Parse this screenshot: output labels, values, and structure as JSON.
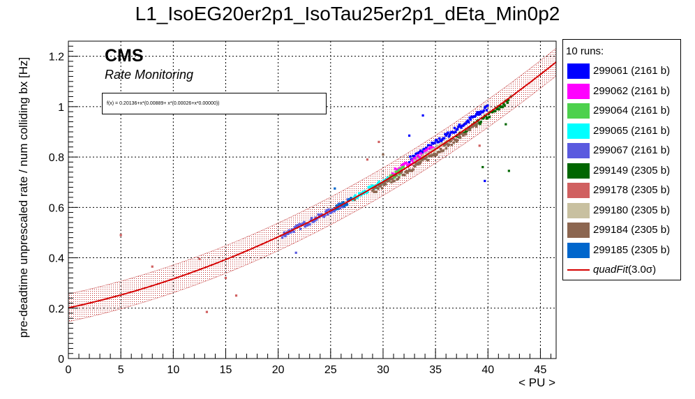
{
  "title": "L1_IsoEG20er2p1_IsoTau25er2p1_dEta_Min0p2",
  "cms_label": "CMS",
  "rate_label": "Rate Monitoring",
  "fit_formula": "f(x) = 0.20136+x*(0.00889+ x*(0.00026+x*0.00000))",
  "legend": {
    "header": "10 runs:",
    "fit_name": "quadFit",
    "fit_sigma": "(3.0σ)"
  },
  "colors": {
    "fit_line": "#d50000",
    "band": "#c03030"
  },
  "chart_data": {
    "type": "scatter",
    "title": "L1_IsoEG20er2p1_IsoTau25er2p1_dEta_Min0p2",
    "xlabel": "< PU >",
    "ylabel": "pre-deadtime unprescaled rate / num colliding bx [Hz]",
    "xlim": [
      0,
      46.5
    ],
    "ylim": [
      0,
      1.26
    ],
    "xticks": [
      0,
      5,
      10,
      15,
      20,
      25,
      30,
      35,
      40,
      45
    ],
    "yticks": [
      0,
      0.2,
      0.4,
      0.6,
      0.8,
      1,
      1.2
    ],
    "ytick_labels": [
      "0",
      "0.2",
      "0.4",
      "0.6",
      "0.8",
      "1",
      "1.2"
    ],
    "grid": true,
    "legend_position": "right",
    "fit": {
      "a": 0.20136,
      "b": 0.00889,
      "c": 0.00026,
      "band_sigma": 3.0,
      "band_halfwidth": 0.055
    },
    "series": [
      {
        "name": "299061 (2161 b)",
        "color": "#0000ff",
        "segments": [
          [
            32.5,
            40.0
          ]
        ],
        "offset": 0.025,
        "outliers": [
          [
            33.8,
            0.965
          ],
          [
            32.5,
            0.885
          ],
          [
            39.7,
            0.705
          ]
        ]
      },
      {
        "name": "299062 (2161 b)",
        "color": "#ff00ff",
        "segments": [
          [
            30.8,
            35.0
          ]
        ],
        "offset": 0.012,
        "outliers": []
      },
      {
        "name": "299064 (2161 b)",
        "color": "#4dd14d",
        "segments": [
          [
            30.5,
            32.0
          ]
        ],
        "offset": 0.0,
        "outliers": []
      },
      {
        "name": "299065 (2161 b)",
        "color": "#00ffff",
        "segments": [
          [
            27.0,
            30.5
          ]
        ],
        "offset": 0.0,
        "outliers": []
      },
      {
        "name": "299067 (2161 b)",
        "color": "#5a5adf",
        "segments": [
          [
            20.5,
            26.7
          ]
        ],
        "offset": 0.0,
        "outliers": [
          [
            21.7,
            0.42
          ],
          [
            20.4,
            0.48
          ]
        ]
      },
      {
        "name": "299149 (2305 b)",
        "color": "#006600",
        "segments": [
          [
            37.0,
            42.0
          ]
        ],
        "offset": -0.01,
        "outliers": [
          [
            42.0,
            0.745
          ],
          [
            39.5,
            0.76
          ],
          [
            42.2,
            1.04
          ],
          [
            41.7,
            0.93
          ]
        ]
      },
      {
        "name": "299178 (2305 b)",
        "color": "#d06060",
        "segments": [],
        "offset": 0.0,
        "outliers": [
          [
            5.0,
            0.49
          ],
          [
            8.0,
            0.365
          ],
          [
            12.5,
            0.395
          ],
          [
            15.0,
            0.32
          ],
          [
            16.0,
            0.25
          ],
          [
            29.6,
            0.86
          ],
          [
            28.5,
            0.79
          ],
          [
            13.2,
            0.185
          ],
          [
            39.2,
            0.845
          ]
        ]
      },
      {
        "name": "299180 (2305 b)",
        "color": "#c8c0a0",
        "segments": [
          [
            33.0,
            36.5
          ]
        ],
        "offset": 0.0,
        "outliers": []
      },
      {
        "name": "299184 (2305 b)",
        "color": "#8c6650",
        "segments": [
          [
            29.0,
            39.0
          ]
        ],
        "offset": -0.015,
        "outliers": [
          [
            27.3,
            0.63
          ],
          [
            30.0,
            0.81
          ]
        ]
      },
      {
        "name": "299185 (2305 b)",
        "color": "#0066cc",
        "segments": [
          [
            25.5,
            27.0
          ]
        ],
        "offset": 0.0,
        "outliers": [
          [
            25.4,
            0.675
          ]
        ]
      }
    ]
  }
}
